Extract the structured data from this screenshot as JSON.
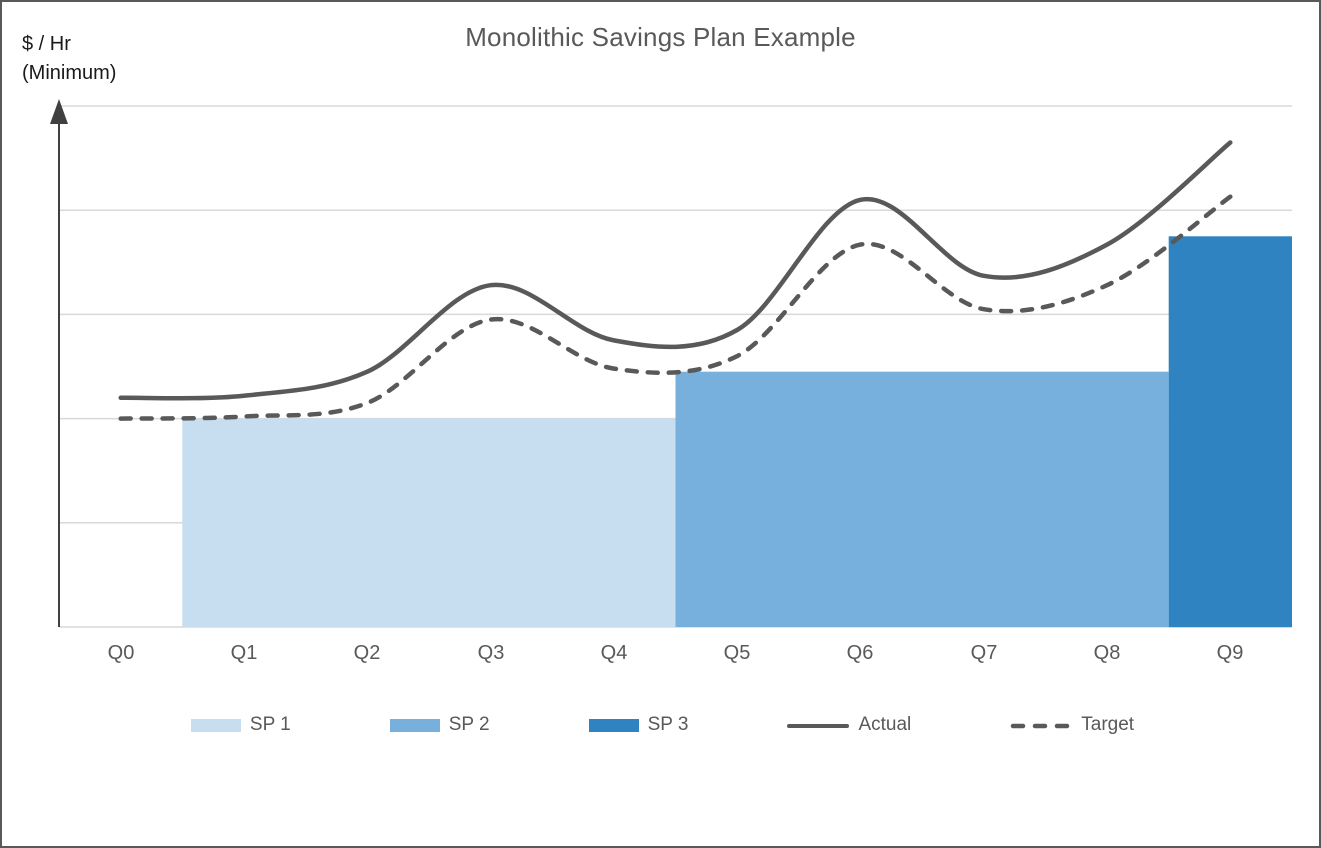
{
  "window": {
    "border_color": "#58595b",
    "background": "#ffffff"
  },
  "title": "Monolithic Savings Plan Example",
  "y_axis_label": {
    "line1": "$ / Hr",
    "line2": "(Minimum)"
  },
  "legend": {
    "items": [
      {
        "label": "SP 1",
        "type": "swatch",
        "color": "#c7ddf0"
      },
      {
        "label": "SP 2",
        "type": "swatch",
        "color": "#77b0dc"
      },
      {
        "label": "SP 3",
        "type": "swatch",
        "color": "#2f83c0"
      },
      {
        "label": "Actual",
        "type": "line-solid",
        "color": "#595959"
      },
      {
        "label": "Target",
        "type": "line-dashed",
        "color": "#595959"
      }
    ]
  },
  "chart_data": {
    "type": "combo-bar-line",
    "title": "Monolithic Savings Plan Example",
    "xlabel": "",
    "ylabel": "$ / Hr (Minimum)",
    "categories": [
      "Q0",
      "Q1",
      "Q2",
      "Q3",
      "Q4",
      "Q5",
      "Q6",
      "Q7",
      "Q8",
      "Q9"
    ],
    "y_axis": {
      "min": 0,
      "max": 5,
      "gridline_values": [
        1,
        2,
        3,
        4,
        5
      ],
      "gridline_color": "#d9d9d9",
      "axis_line_color": "#404040",
      "tick_labels_shown": false
    },
    "bars": [
      {
        "name": "SP 1",
        "color": "#c7ddf0",
        "slot_start": 1,
        "slot_end": 5,
        "value": 2.0
      },
      {
        "name": "SP 2",
        "color": "#77b0dc",
        "slot_start": 5,
        "slot_end": 9,
        "value": 2.45
      },
      {
        "name": "SP 3",
        "color": "#2f83c0",
        "slot_start": 9,
        "slot_end": 10,
        "value": 3.75
      }
    ],
    "series": [
      {
        "name": "Actual",
        "style": "solid",
        "color": "#595959",
        "values": [
          2.2,
          2.22,
          2.45,
          3.28,
          2.75,
          2.85,
          4.1,
          3.37,
          3.67,
          4.65
        ]
      },
      {
        "name": "Target",
        "style": "dashed",
        "color": "#595959",
        "values": [
          2.0,
          2.02,
          2.15,
          2.95,
          2.48,
          2.6,
          3.67,
          3.05,
          3.28,
          4.13
        ]
      }
    ],
    "legend_position": "bottom",
    "grid": true
  }
}
